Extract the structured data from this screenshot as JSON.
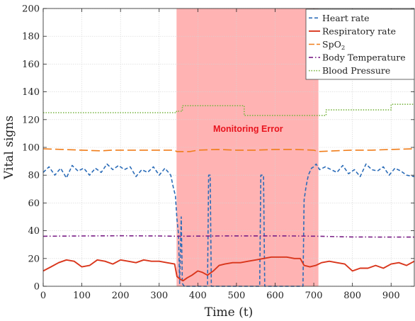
{
  "chart_data": {
    "type": "line",
    "title": "",
    "xlabel": "Time (t)",
    "ylabel": "Vital signs",
    "xlim": [
      0,
      960
    ],
    "ylim": [
      0,
      200
    ],
    "xticks": [
      0,
      100,
      200,
      300,
      400,
      500,
      600,
      700,
      800,
      900
    ],
    "yticks": [
      0,
      20,
      40,
      60,
      80,
      100,
      120,
      140,
      160,
      180,
      200
    ],
    "grid": true,
    "legend_position": "top-right",
    "annotation": {
      "text": "Monitoring Error",
      "x_range": [
        345,
        712
      ],
      "label_x": 530,
      "label_y": 113,
      "fill_color": "#ffb3b3",
      "text_color": "#e8141e"
    },
    "series": [
      {
        "name": "Heart rate",
        "color": "#2b6cb8",
        "style": "dashed",
        "points": [
          [
            0,
            82
          ],
          [
            15,
            86
          ],
          [
            30,
            80
          ],
          [
            45,
            85
          ],
          [
            60,
            78
          ],
          [
            75,
            87
          ],
          [
            90,
            83
          ],
          [
            105,
            85
          ],
          [
            120,
            80
          ],
          [
            135,
            85
          ],
          [
            150,
            82
          ],
          [
            165,
            88
          ],
          [
            180,
            84
          ],
          [
            195,
            87
          ],
          [
            210,
            84
          ],
          [
            225,
            86
          ],
          [
            240,
            79
          ],
          [
            255,
            84
          ],
          [
            270,
            82
          ],
          [
            285,
            86
          ],
          [
            300,
            80
          ],
          [
            315,
            85
          ],
          [
            330,
            80
          ],
          [
            336,
            72
          ],
          [
            342,
            65
          ],
          [
            346,
            48
          ],
          [
            350,
            38
          ],
          [
            353,
            2
          ],
          [
            357,
            50
          ],
          [
            360,
            2
          ],
          [
            365,
            0
          ],
          [
            425,
            0
          ],
          [
            428,
            80
          ],
          [
            432,
            80
          ],
          [
            435,
            0
          ],
          [
            560,
            0
          ],
          [
            563,
            80
          ],
          [
            570,
            80
          ],
          [
            573,
            0
          ],
          [
            672,
            0
          ],
          [
            675,
            62
          ],
          [
            680,
            72
          ],
          [
            686,
            80
          ],
          [
            694,
            85
          ],
          [
            700,
            86
          ],
          [
            706,
            88
          ],
          [
            715,
            84
          ],
          [
            730,
            86
          ],
          [
            745,
            84
          ],
          [
            760,
            82
          ],
          [
            775,
            87
          ],
          [
            790,
            81
          ],
          [
            805,
            84
          ],
          [
            820,
            79
          ],
          [
            835,
            88
          ],
          [
            850,
            84
          ],
          [
            865,
            83
          ],
          [
            880,
            86
          ],
          [
            895,
            80
          ],
          [
            910,
            85
          ],
          [
            925,
            83
          ],
          [
            940,
            80
          ],
          [
            960,
            79
          ]
        ]
      },
      {
        "name": "Respiratory rate",
        "color": "#d9361c",
        "style": "solid",
        "points": [
          [
            0,
            11
          ],
          [
            20,
            14
          ],
          [
            40,
            17
          ],
          [
            60,
            19
          ],
          [
            80,
            18
          ],
          [
            100,
            14
          ],
          [
            120,
            15
          ],
          [
            140,
            19
          ],
          [
            160,
            18
          ],
          [
            180,
            16
          ],
          [
            200,
            19
          ],
          [
            220,
            18
          ],
          [
            240,
            17
          ],
          [
            260,
            19
          ],
          [
            280,
            18
          ],
          [
            300,
            18
          ],
          [
            320,
            17
          ],
          [
            340,
            16
          ],
          [
            346,
            7
          ],
          [
            355,
            5
          ],
          [
            362,
            4
          ],
          [
            372,
            6
          ],
          [
            385,
            8
          ],
          [
            400,
            11
          ],
          [
            412,
            10
          ],
          [
            425,
            8
          ],
          [
            440,
            11
          ],
          [
            455,
            15
          ],
          [
            470,
            16
          ],
          [
            490,
            17
          ],
          [
            510,
            17
          ],
          [
            530,
            18
          ],
          [
            550,
            19
          ],
          [
            570,
            20
          ],
          [
            590,
            21
          ],
          [
            610,
            21
          ],
          [
            630,
            21
          ],
          [
            650,
            20
          ],
          [
            665,
            20
          ],
          [
            675,
            15
          ],
          [
            690,
            14
          ],
          [
            705,
            15
          ],
          [
            720,
            17
          ],
          [
            740,
            18
          ],
          [
            760,
            17
          ],
          [
            780,
            16
          ],
          [
            800,
            11
          ],
          [
            820,
            13
          ],
          [
            840,
            13
          ],
          [
            860,
            15
          ],
          [
            880,
            13
          ],
          [
            900,
            16
          ],
          [
            920,
            17
          ],
          [
            940,
            15
          ],
          [
            960,
            18
          ]
        ]
      },
      {
        "name": "SpO2",
        "name_main": "SpO",
        "name_sub": "2",
        "color": "#f07d1a",
        "style": "longdash",
        "points": [
          [
            0,
            99
          ],
          [
            50,
            98.5
          ],
          [
            100,
            98
          ],
          [
            150,
            97.5
          ],
          [
            180,
            98
          ],
          [
            220,
            98
          ],
          [
            260,
            98
          ],
          [
            300,
            98
          ],
          [
            340,
            98
          ],
          [
            345,
            97
          ],
          [
            380,
            97
          ],
          [
            400,
            98
          ],
          [
            450,
            98.5
          ],
          [
            500,
            98
          ],
          [
            550,
            98
          ],
          [
            600,
            98.5
          ],
          [
            650,
            98.5
          ],
          [
            700,
            98
          ],
          [
            712,
            97
          ],
          [
            750,
            97.5
          ],
          [
            800,
            98
          ],
          [
            850,
            98
          ],
          [
            900,
            98.5
          ],
          [
            960,
            99
          ]
        ]
      },
      {
        "name": "Body Temperature",
        "color": "#7a1f86",
        "style": "dashdot",
        "points": [
          [
            0,
            36
          ],
          [
            100,
            36.2
          ],
          [
            200,
            36.4
          ],
          [
            300,
            36.2
          ],
          [
            345,
            36
          ],
          [
            450,
            36.2
          ],
          [
            550,
            36.3
          ],
          [
            650,
            36.2
          ],
          [
            712,
            36
          ],
          [
            800,
            35.5
          ],
          [
            900,
            35.4
          ],
          [
            960,
            35.4
          ]
        ]
      },
      {
        "name": "Blood Pressure",
        "color": "#79b542",
        "style": "dotted",
        "points": [
          [
            0,
            125
          ],
          [
            345,
            125
          ],
          [
            345,
            126
          ],
          [
            360,
            126
          ],
          [
            360,
            130
          ],
          [
            520,
            130
          ],
          [
            520,
            123
          ],
          [
            732,
            123
          ],
          [
            732,
            127
          ],
          [
            900,
            127
          ],
          [
            900,
            131
          ],
          [
            960,
            131
          ]
        ]
      }
    ]
  }
}
